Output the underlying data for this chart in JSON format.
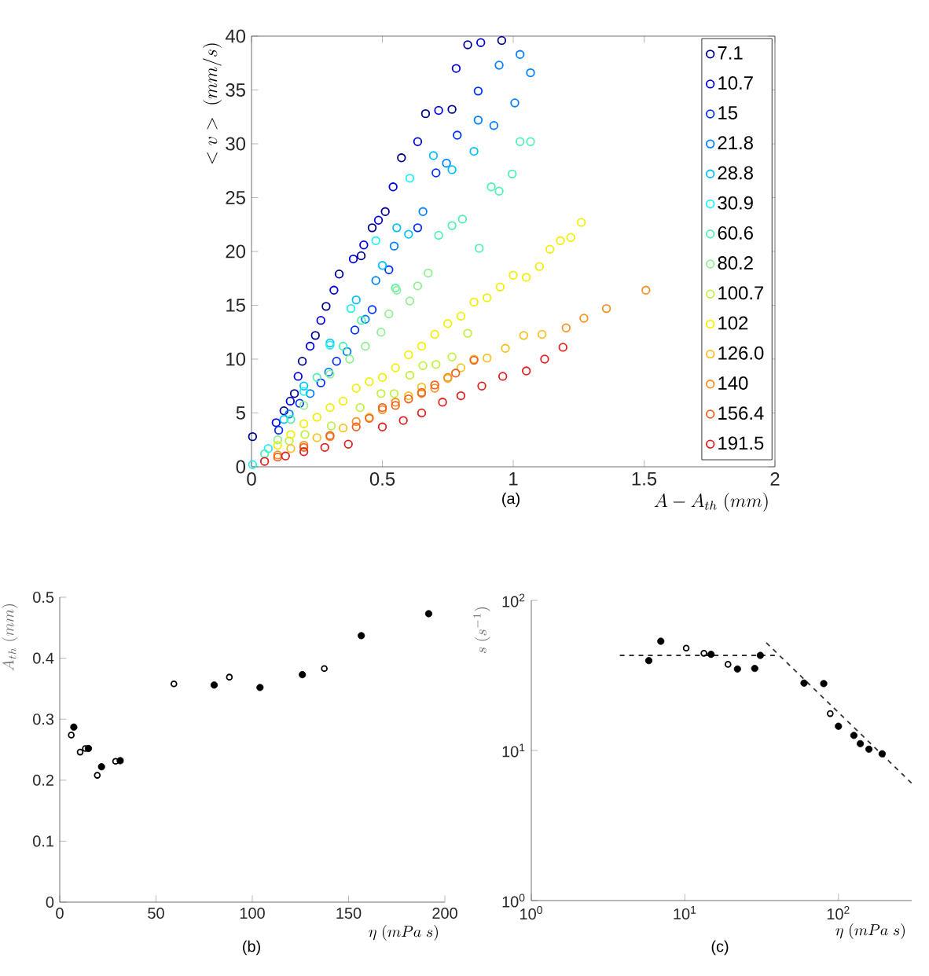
{
  "chart_data": [
    {
      "type": "scatter",
      "xlabel": "A-A_{th}\\ (mm)",
      "ylabel": "<v>\\ (mm/s)",
      "annotations": [
        "(a)"
      ],
      "marker": "circle",
      "legend": "top right",
      "xlim": [
        0,
        2
      ],
      "ylim": [
        0,
        40
      ],
      "xticks": [
        0,
        0.5,
        1,
        1.5,
        2
      ],
      "yticks": [
        0,
        5,
        10,
        15,
        20,
        25,
        30,
        35,
        40
      ],
      "series": [
        {
          "name": "7.1",
          "color": "#00008f",
          "x": [
            0.004,
            0.124,
            0.164,
            0.194,
            0.244,
            0.285,
            0.335,
            0.419,
            0.461,
            0.511,
            0.573,
            0.665,
            0.766,
            0.826,
            0.956
          ],
          "values": [
            2.8,
            5.2,
            6.8,
            9.8,
            12.2,
            14.9,
            17.9,
            19.6,
            22.2,
            23.7,
            28.7,
            32.8,
            33.2,
            39.2,
            39.6
          ]
        },
        {
          "name": "10.7",
          "color": "#0000df",
          "x": [
            0.094,
            0.148,
            0.178,
            0.224,
            0.265,
            0.315,
            0.389,
            0.429,
            0.485,
            0.541,
            0.635,
            0.715,
            0.782,
            0.876
          ],
          "values": [
            4.1,
            6.1,
            8.4,
            11.2,
            13.6,
            16.4,
            19.3,
            20.6,
            22.9,
            26.0,
            30.2,
            33.1,
            37.0,
            39.4
          ]
        },
        {
          "name": "15",
          "color": "#0030ff",
          "x": [
            0.104,
            0.184,
            0.265,
            0.325,
            0.395,
            0.461,
            0.525,
            0.635,
            0.705,
            0.786,
            0.866
          ],
          "values": [
            3.4,
            5.9,
            7.8,
            9.8,
            12.7,
            14.6,
            18.3,
            22.2,
            27.3,
            30.8,
            34.9
          ]
        },
        {
          "name": "21.8",
          "color": "#0080ff",
          "x": [
            0.144,
            0.224,
            0.295,
            0.365,
            0.435,
            0.475,
            0.545,
            0.655,
            0.745,
            0.866,
            0.926,
            0.946,
            1.006,
            1.026,
            1.066
          ],
          "values": [
            4.9,
            6.8,
            8.8,
            10.7,
            13.7,
            17.3,
            20.5,
            23.7,
            28.2,
            32.2,
            31.7,
            37.3,
            33.8,
            38.3,
            36.6
          ]
        },
        {
          "name": "28.8",
          "color": "#00c0ff",
          "x": [
            0.124,
            0.2,
            0.3,
            0.4,
            0.5,
            0.555,
            0.6,
            0.695,
            0.766,
            0.85
          ],
          "values": [
            4.4,
            7.5,
            11.5,
            15.5,
            18.7,
            22.2,
            21.6,
            28.9,
            27.6,
            29.3
          ]
        },
        {
          "name": "30.9",
          "color": "#20f0f0",
          "x": [
            0.004,
            0.064,
            0.2,
            0.3,
            0.38,
            0.475,
            0.605
          ],
          "values": [
            0.2,
            1.7,
            7.0,
            11.3,
            14.7,
            21.0,
            26.8
          ]
        },
        {
          "name": "60.6",
          "color": "#50f0b0",
          "x": [
            0.05,
            0.15,
            0.25,
            0.35,
            0.42,
            0.55,
            0.715,
            0.766,
            0.806,
            0.87,
            0.916,
            0.946,
            0.996,
            1.026,
            1.066
          ],
          "values": [
            1.2,
            4.4,
            8.3,
            11.2,
            13.6,
            16.6,
            21.5,
            22.4,
            23.0,
            20.3,
            26.0,
            25.6,
            27.2,
            30.2,
            30.2
          ]
        },
        {
          "name": "80.2",
          "color": "#90f090",
          "x": [
            0.1,
            0.2,
            0.3,
            0.375,
            0.435,
            0.495,
            0.525,
            0.555,
            0.605,
            0.635,
            0.675
          ],
          "values": [
            2.5,
            5.7,
            8.6,
            10.0,
            11.2,
            12.5,
            14.2,
            16.4,
            15.4,
            16.8,
            18.0
          ]
        },
        {
          "name": "100.7",
          "color": "#c0f040",
          "x": [
            0.144,
            0.204,
            0.305,
            0.415,
            0.495,
            0.545,
            0.605,
            0.655,
            0.705,
            0.766,
            0.826
          ],
          "values": [
            2.4,
            3.0,
            3.8,
            5.5,
            6.8,
            6.8,
            8.5,
            9.4,
            9.5,
            10.2,
            12.4
          ]
        },
        {
          "name": "102",
          "color": "#f0f000",
          "x": [
            0.1,
            0.15,
            0.2,
            0.25,
            0.3,
            0.35,
            0.4,
            0.45,
            0.5,
            0.55,
            0.6,
            0.65,
            0.7,
            0.75,
            0.8,
            0.85,
            0.9,
            0.95,
            1.0,
            1.05,
            1.1,
            1.14,
            1.18,
            1.22,
            1.26
          ],
          "values": [
            2.0,
            3.0,
            4.0,
            4.6,
            5.5,
            6.1,
            7.3,
            7.9,
            8.3,
            9.2,
            10.4,
            11.2,
            12.3,
            13.3,
            14.0,
            15.3,
            15.7,
            16.7,
            17.8,
            17.6,
            18.6,
            20.2,
            21.0,
            21.3,
            22.7
          ]
        },
        {
          "name": "126.0",
          "color": "#f8c020",
          "x": [
            0.15,
            0.25,
            0.35,
            0.45,
            0.55,
            0.6,
            0.65,
            0.7,
            0.75,
            0.8,
            0.85,
            0.9,
            0.97,
            1.04,
            1.11
          ],
          "values": [
            1.7,
            2.7,
            3.6,
            4.6,
            null,
            6.6,
            7.4,
            null,
            8.2,
            9.2,
            10.0,
            10.1,
            11.0,
            12.2,
            12.3
          ]
        },
        {
          "name": "140",
          "color": "#f89020",
          "x": [
            0.1,
            0.2,
            0.3,
            0.4,
            0.5,
            0.55,
            0.6,
            0.65,
            0.7,
            0.75,
            1.202,
            1.27,
            1.356,
            1.507
          ],
          "values": [
            1.1,
            2.0,
            2.8,
            4.2,
            5.3,
            6.0,
            null,
            6.8,
            7.3,
            8.3,
            12.9,
            13.8,
            14.7,
            16.4
          ]
        },
        {
          "name": "156.4",
          "color": "#f06020",
          "x": [
            0.1,
            0.2,
            0.3,
            0.4,
            0.45,
            0.5,
            0.55,
            0.6,
            0.65,
            0.7,
            0.78,
            0.85
          ],
          "values": [
            0.9,
            1.8,
            2.9,
            3.7,
            4.5,
            5.5,
            5.7,
            6.3,
            6.9,
            7.6,
            8.7,
            9.9
          ]
        },
        {
          "name": "191.5",
          "color": "#e02020",
          "x": [
            0.05,
            0.13,
            0.2,
            0.28,
            0.37,
            0.5,
            0.58,
            0.65,
            0.73,
            0.8,
            0.88,
            0.96,
            1.05,
            1.12,
            1.19
          ],
          "values": [
            0.5,
            1.0,
            1.4,
            1.8,
            2.1,
            3.7,
            4.3,
            5.0,
            6.0,
            6.6,
            7.5,
            8.4,
            8.9,
            10.0,
            11.1
          ]
        }
      ]
    },
    {
      "type": "scatter",
      "xlabel": "\\eta\\ (mPa\\ s)",
      "ylabel": "A_{th}\\ (mm)",
      "annotations": [
        "(b)"
      ],
      "marker": "circle",
      "xlim": [
        0,
        200
      ],
      "ylim": [
        0,
        0.5
      ],
      "xticks": [
        0,
        50,
        100,
        150,
        200
      ],
      "yticks": [
        0,
        0.1,
        0.2,
        0.3,
        0.4,
        0.5
      ],
      "series": [
        {
          "color": "#000000",
          "x": [
            7.3,
            14.9,
            21.7,
            31.4,
            80.2,
            104,
            126,
            156.6,
            191.6
          ],
          "values": [
            0.287,
            0.252,
            0.222,
            0.232,
            0.356,
            0.352,
            0.373,
            0.437,
            0.473
          ]
        },
        {
          "color": "#000000",
          "x": [
            6.0,
            10.6,
            13.3,
            19.5,
            29.0,
            59.3,
            88.1,
            137.4
          ],
          "values": [
            0.274,
            0.246,
            0.252,
            0.208,
            0.231,
            0.358,
            0.369,
            0.383
          ]
        }
      ]
    },
    {
      "type": "scatter",
      "xlabel": "\\eta\\ (mPa\\ s)",
      "ylabel": "s\\ (s^{-1})",
      "annotations": [
        "(c)"
      ],
      "marker": "circle",
      "log": "xy",
      "xlim": [
        1,
        300
      ],
      "ylim": [
        1,
        100
      ],
      "xticks": [
        {
          "value": 1,
          "label": "10$^{0}$"
        },
        {
          "value": 10,
          "label": "10$^{1}$"
        },
        {
          "value": 100,
          "label": "10$^{2}$"
        }
      ],
      "yticks": [
        {
          "value": 1,
          "label": "10$^{0}$"
        },
        {
          "value": 10,
          "label": "10$^{1}$"
        },
        {
          "value": 100,
          "label": "10$^{2}$"
        }
      ],
      "series": [
        {
          "color": "#000000",
          "x": [
            5.82,
            6.97,
            14.8,
            22.0,
            28.5,
            31.0,
            59.7,
            80.2,
            100,
            126,
            138.8,
            158,
            192.6
          ],
          "values": [
            39.7,
            53.4,
            43.7,
            34.9,
            35.2,
            43.0,
            28.1,
            27.9,
            14.5,
            12.6,
            11.1,
            10.2,
            9.5
          ]
        },
        {
          "color": "#000000",
          "x": [
            10.2,
            13.3,
            19.1,
            88.4
          ],
          "values": [
            48.1,
            44.4,
            37.5,
            17.6
          ]
        },
        {
          "type": "line",
          "line_style": "dashed",
          "marker": "none",
          "color": "#333333",
          "x": [
            3.77,
            41.3
          ],
          "values": [
            43.0,
            43.0
          ]
        },
        {
          "type": "line",
          "line_style": "dashed",
          "marker": "none",
          "color": "#333333",
          "x": [
            33.9,
            300
          ],
          "values": [
            52.2,
            6.05
          ]
        }
      ]
    }
  ]
}
